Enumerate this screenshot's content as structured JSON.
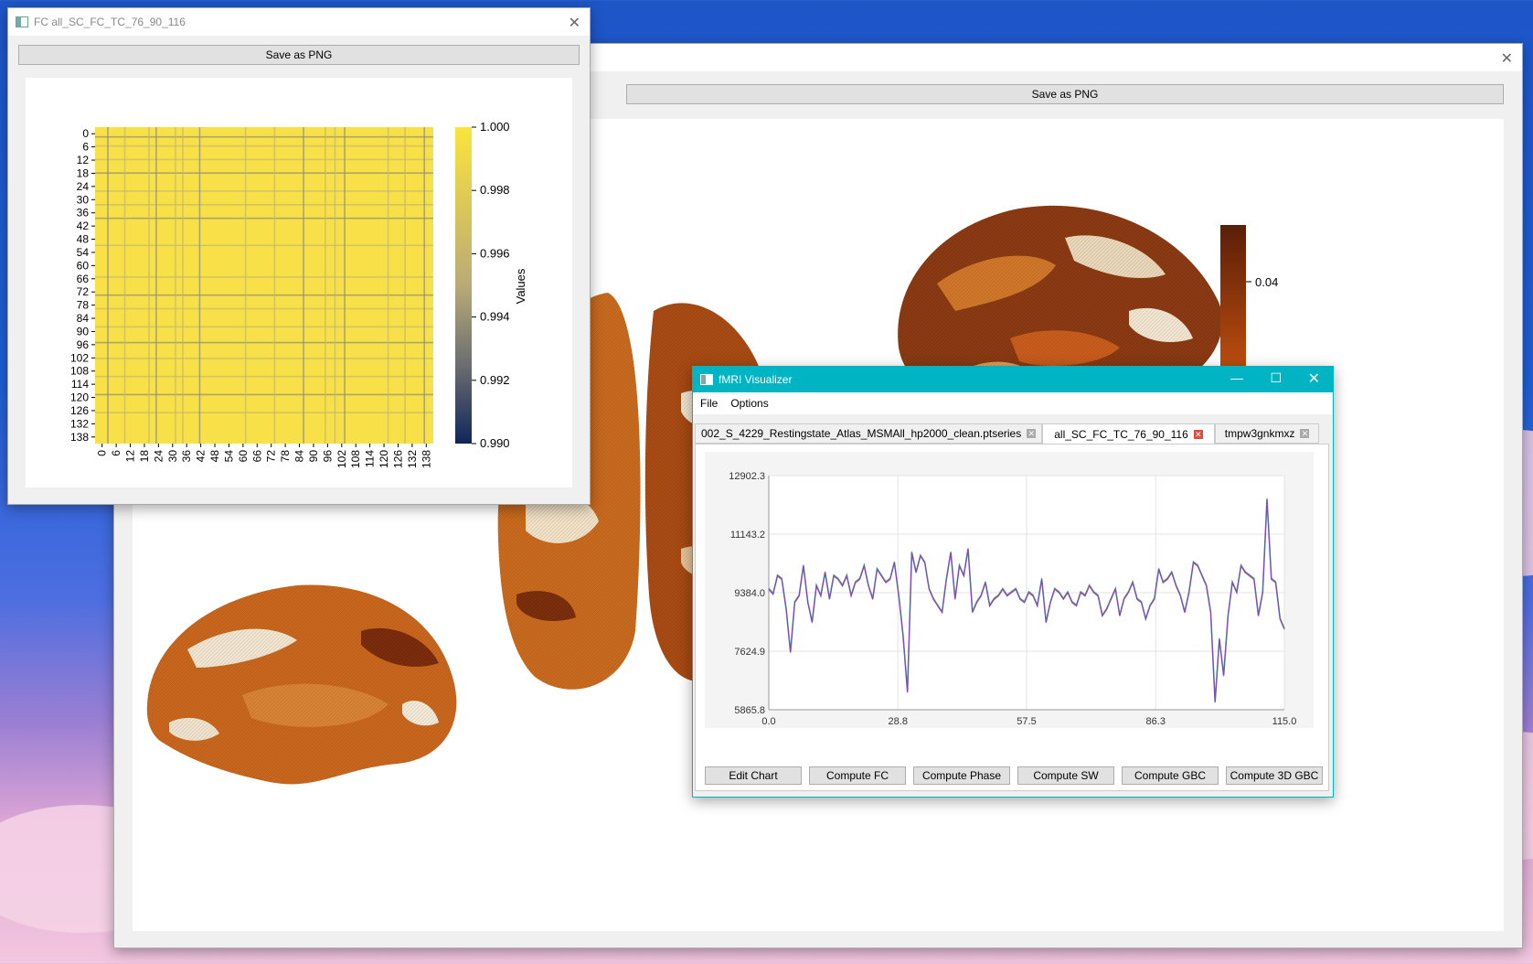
{
  "back_window": {
    "save_label": "Save as PNG",
    "colorbar_tick": "0.04"
  },
  "fc_window": {
    "title": "FC all_SC_FC_TC_76_90_116",
    "save_label": "Save as PNG",
    "heatmap": {
      "y_ticks": [
        "0",
        "6",
        "12",
        "18",
        "24",
        "30",
        "36",
        "42",
        "48",
        "54",
        "60",
        "66",
        "72",
        "78",
        "84",
        "90",
        "96",
        "102",
        "108",
        "114",
        "120",
        "126",
        "132",
        "138"
      ],
      "x_ticks": [
        "0",
        "6",
        "12",
        "18",
        "24",
        "30",
        "36",
        "42",
        "48",
        "54",
        "60",
        "66",
        "72",
        "78",
        "84",
        "90",
        "96",
        "102",
        "108",
        "114",
        "120",
        "126",
        "132",
        "138"
      ],
      "colorbar_ticks": [
        "1.000",
        "0.998",
        "0.996",
        "0.994",
        "0.992",
        "0.990"
      ],
      "colorbar_label": "Values",
      "colors": {
        "high": "#fbe43b",
        "mid": "#b9ab77",
        "low": "#10265a"
      }
    }
  },
  "fmri_window": {
    "title": "fMRI Visualizer",
    "menu": [
      "File",
      "Options"
    ],
    "tabs": [
      {
        "label": "002_S_4229_Restingstate_Atlas_MSMAll_hp2000_clean.ptseries",
        "active": false
      },
      {
        "label": "all_SC_FC_TC_76_90_116",
        "active": true
      },
      {
        "label": "tmpw3gnkmxz",
        "active": false
      }
    ],
    "buttons": [
      "Edit Chart",
      "Compute FC",
      "Compute Phase",
      "Compute SW",
      "Compute GBC",
      "Compute 3D GBC"
    ]
  },
  "chart_data": {
    "type": "line",
    "title": "",
    "xlabel": "",
    "ylabel": "",
    "xlim": [
      0.0,
      115.0
    ],
    "ylim": [
      5865.8,
      12902.3
    ],
    "x_ticks": [
      "0.0",
      "28.8",
      "57.5",
      "86.3",
      "115.0"
    ],
    "y_ticks": [
      "12902.3",
      "11143.2",
      "9384.0",
      "7624.9",
      "5865.8"
    ],
    "grid": true,
    "series": [
      {
        "color": "#3a8fd6",
        "values": [
          9500,
          9350,
          9900,
          9800,
          8900,
          7600,
          9100,
          9300,
          10200,
          9100,
          8500,
          9600,
          9300,
          10000,
          9200,
          9900,
          9800,
          9600,
          9900,
          9300,
          9700,
          9800,
          10200,
          9600,
          9200,
          10100,
          9900,
          9700,
          9800,
          10300,
          9300,
          8100,
          6400,
          10600,
          10000,
          10500,
          10300,
          9500,
          9200,
          9000,
          8800,
          9800,
          10600,
          9200,
          10200,
          9900,
          10700,
          8800,
          9100,
          9300,
          9700,
          9000,
          9200,
          9300,
          9500,
          9300,
          9400,
          9500,
          9200,
          9100,
          9400,
          9300,
          9000,
          9800,
          8500,
          9100,
          9500,
          9400,
          9200,
          9400,
          9100,
          9000,
          9400,
          9300,
          9600,
          9400,
          9300,
          8700,
          8900,
          9200,
          9500,
          8700,
          9200,
          9400,
          9700,
          9200,
          9100,
          8600,
          9000,
          9200,
          10100,
          9700,
          9800,
          10000,
          9600,
          9300,
          8800,
          9400,
          10300,
          10200,
          9900,
          9600,
          8800,
          6100,
          8000,
          6900,
          8700,
          9700,
          9400,
          10200,
          10000,
          9900,
          9800,
          8700,
          9400,
          12200,
          9800,
          9700,
          8600,
          8300
        ]
      }
    ]
  }
}
